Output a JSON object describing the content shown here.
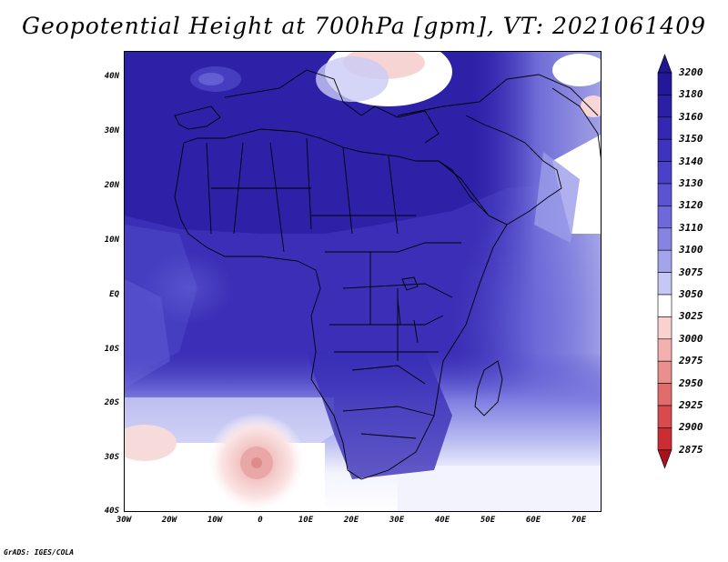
{
  "title": "Geopotential Height at 700hPa [gpm], VT: 2021061409",
  "footer": "GrADS: IGES/COLA",
  "map": {
    "lat_labels": [
      "40N",
      "30N",
      "20N",
      "10N",
      "EQ",
      "10S",
      "20S",
      "30S",
      "40S"
    ],
    "lon_labels": [
      "30W",
      "20W",
      "10W",
      "0",
      "10E",
      "20E",
      "30E",
      "40E",
      "50E",
      "60E",
      "70E"
    ],
    "extent": {
      "lon_min": -30,
      "lon_max": 75,
      "lat_min": -40,
      "lat_max": 44
    },
    "background_color": "#3a2fb6",
    "coastline_color": "#000000"
  },
  "colorbar": {
    "levels": [
      "3200",
      "3180",
      "3160",
      "3150",
      "3140",
      "3130",
      "3120",
      "3110",
      "3100",
      "3075",
      "3050",
      "3025",
      "3000",
      "2975",
      "2950",
      "2925",
      "2900",
      "2875"
    ],
    "colors": [
      "#24179a",
      "#2b1fa6",
      "#3427b2",
      "#3e33bd",
      "#4b41c8",
      "#5a53d2",
      "#6d69da",
      "#8584e3",
      "#a3a5ec",
      "#c5c8f4",
      "#ffffff",
      "#f9d2d0",
      "#f2b0ae",
      "#eb8f8d",
      "#e26c6c",
      "#d84a4c",
      "#cc2d32",
      "#b81c22"
    ],
    "top_arrow_color": "#1f1690",
    "bottom_arrow_color": "#a7141b"
  }
}
